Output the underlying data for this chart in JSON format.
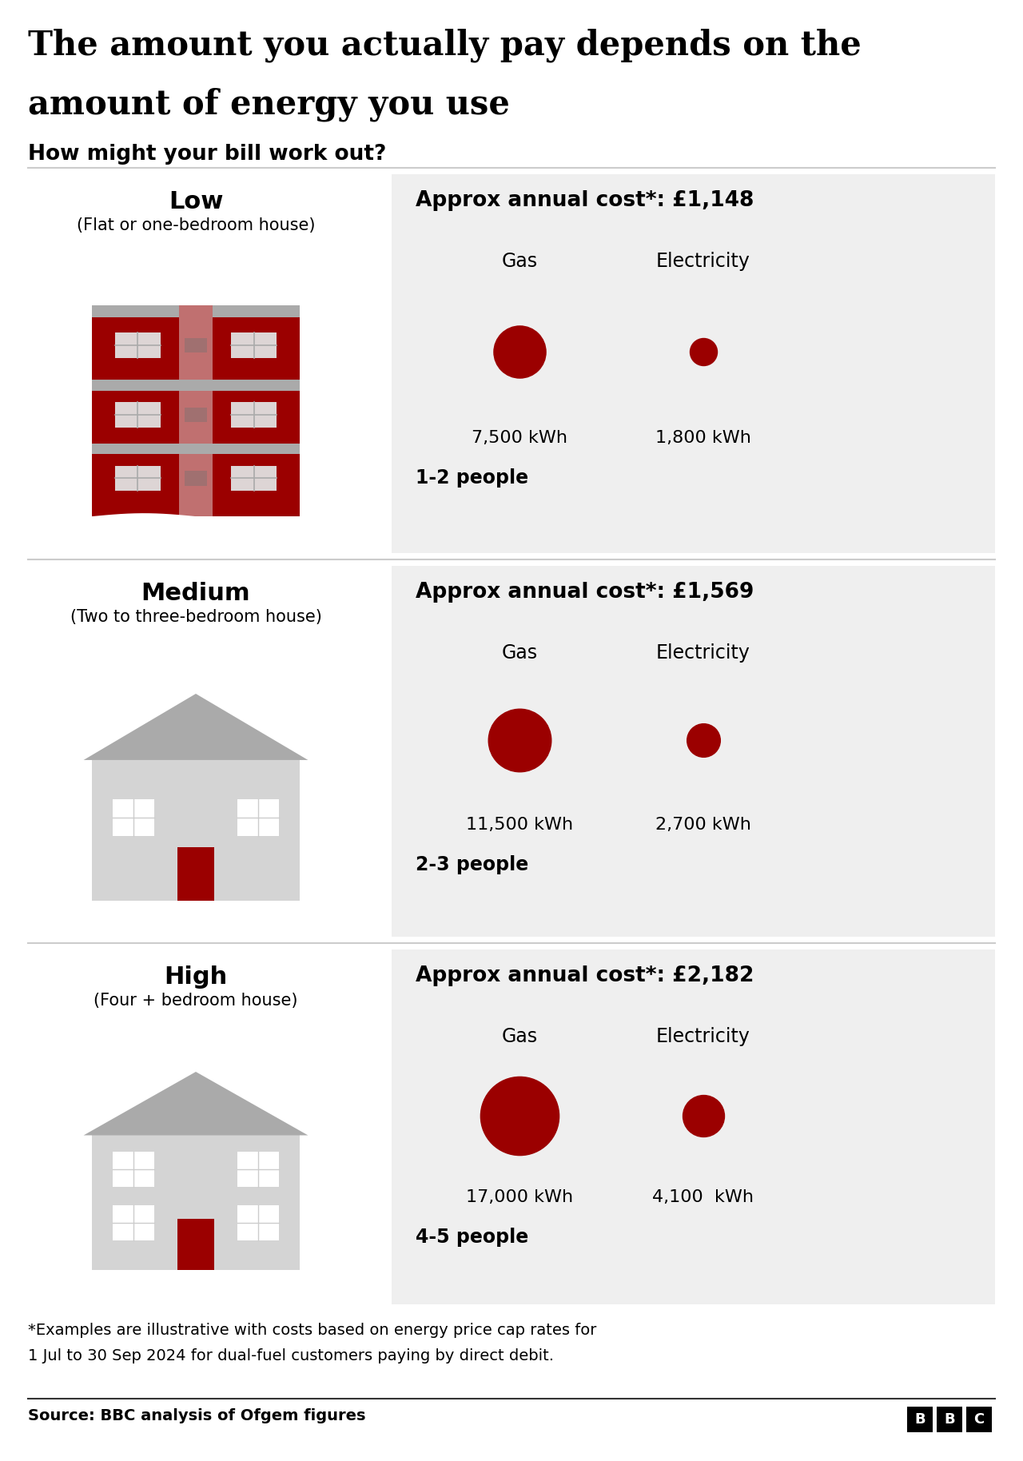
{
  "title_line1": "The amount you actually pay depends on the",
  "title_line2": "amount of energy you use",
  "subtitle": "How might your bill work out?",
  "background_color": "#ffffff",
  "panel_color": "#efefef",
  "dark_red": "#9b0000",
  "rows": [
    {
      "usage_level": "Low",
      "description": "(Flat or one-bedroom house)",
      "annual_cost": "Approx annual cost*: £1,148",
      "gas_kwh": "7,500 kWh",
      "elec_kwh": "1,800 kWh",
      "people": "1-2 people",
      "gas_size": 2200,
      "elec_size": 600,
      "house_type": "flat"
    },
    {
      "usage_level": "Medium",
      "description": "(Two to three-bedroom house)",
      "annual_cost": "Approx annual cost*: £1,569",
      "gas_kwh": "11,500 kWh",
      "elec_kwh": "2,700 kWh",
      "people": "2-3 people",
      "gas_size": 3200,
      "elec_size": 900,
      "house_type": "house"
    },
    {
      "usage_level": "High",
      "description": "(Four + bedroom house)",
      "annual_cost": "Approx annual cost*: £2,182",
      "gas_kwh": "17,000 kWh",
      "elec_kwh": "4,100  kWh",
      "people": "4-5 people",
      "gas_size": 5000,
      "elec_size": 1400,
      "house_type": "large_house"
    }
  ],
  "footnote_line1": "*Examples are illustrative with costs based on energy price cap rates for",
  "footnote_line2": "1 Jul to 30 Sep 2024 for dual-fuel customers paying by direct debit.",
  "source": "Source: BBC analysis of Ofgem figures"
}
